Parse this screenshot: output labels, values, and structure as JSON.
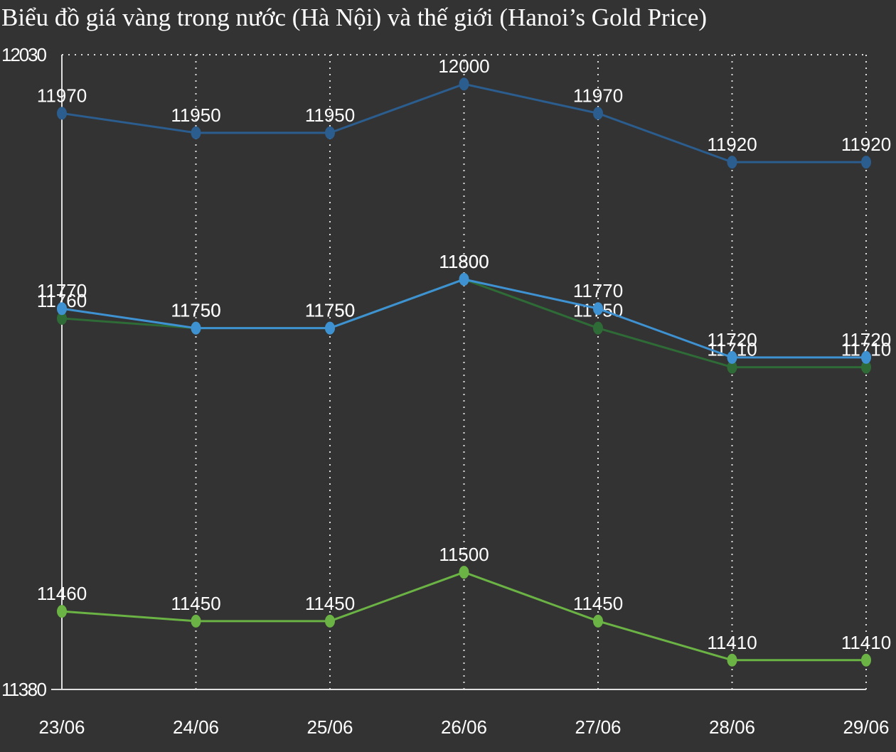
{
  "chart_data": {
    "type": "line",
    "title": "Biểu đồ giá vàng trong nước (Hà Nội) và thế giới (Hanoi’s Gold Price)",
    "categories": [
      "23/06",
      "24/06",
      "25/06",
      "26/06",
      "27/06",
      "28/06",
      "29/06"
    ],
    "series": [
      {
        "color": "#2b5d8e",
        "values": [
          11970,
          11950,
          11950,
          12000,
          11970,
          11920,
          11920
        ]
      },
      {
        "color": "#2e6b36",
        "values": [
          11760,
          11750,
          11750,
          11800,
          11750,
          11710,
          11710
        ]
      },
      {
        "color": "#3f92d2",
        "values": [
          11770,
          11750,
          11750,
          11800,
          11770,
          11720,
          11720
        ]
      },
      {
        "color": "#6ab344",
        "values": [
          11460,
          11450,
          11450,
          11500,
          11450,
          11410,
          11410
        ]
      }
    ],
    "ylim": [
      11380,
      12030
    ],
    "yticks": [
      11380,
      12030
    ],
    "grid": true
  }
}
